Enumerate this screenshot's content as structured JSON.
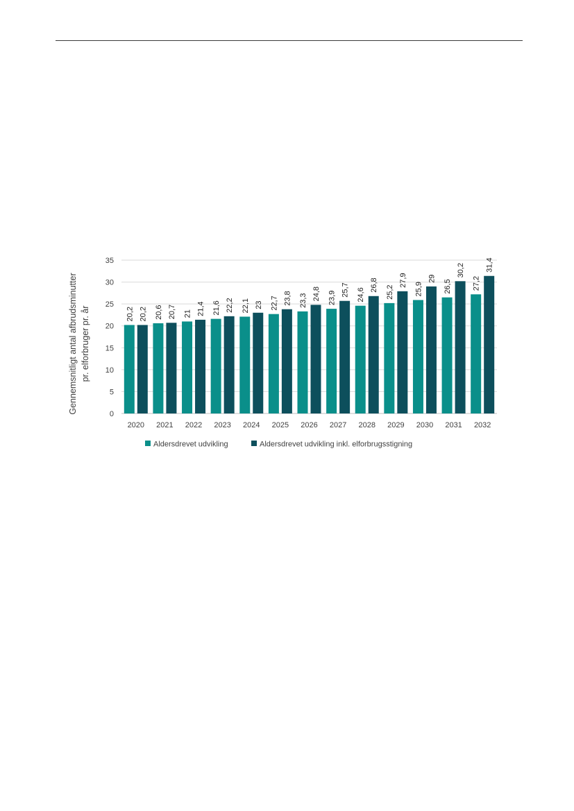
{
  "chart_data": {
    "type": "bar",
    "title": "",
    "ylabel": "Gennemsnitligt antal afbrudsminutter pr. elforbruger pr. år",
    "ylabel_lines": [
      "Gennemsnitligt antal afbrudsminutter",
      "pr. elforbruger pr. år"
    ],
    "xlabel": "",
    "ylim": [
      0,
      35
    ],
    "yticks": [
      0,
      5,
      10,
      15,
      20,
      25,
      30,
      35
    ],
    "grid": true,
    "legend_position": "bottom",
    "categories": [
      "2020",
      "2021",
      "2022",
      "2023",
      "2024",
      "2025",
      "2026",
      "2027",
      "2028",
      "2029",
      "2030",
      "2031",
      "2032"
    ],
    "series": [
      {
        "name": "Aldersdrevet udvikling",
        "color": "#0a8f8a",
        "values": [
          20.2,
          20.6,
          21,
          21.6,
          22.1,
          22.7,
          23.3,
          23.9,
          24.6,
          25.2,
          25.9,
          26.5,
          27.2
        ],
        "labels": [
          "20,2",
          "20,6",
          "21",
          "21,6",
          "22,1",
          "22,7",
          "23,3",
          "23,9",
          "24,6",
          "25,2",
          "25,9",
          "26,5",
          "27,2"
        ]
      },
      {
        "name": "Aldersdrevet udvikling inkl. elforbrugsstigning",
        "color": "#0d4f5c",
        "values": [
          20.2,
          20.7,
          21.4,
          22.2,
          23,
          23.8,
          24.8,
          25.7,
          26.8,
          27.9,
          29,
          30.2,
          31.4
        ],
        "labels": [
          "20,2",
          "20,7",
          "21,4",
          "22,2",
          "23",
          "23,8",
          "24,8",
          "25,7",
          "26,8",
          "27,9",
          "29",
          "30,2",
          "31,4"
        ]
      }
    ]
  }
}
